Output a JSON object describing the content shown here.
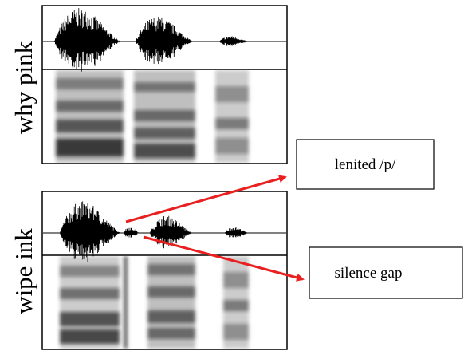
{
  "panels": [
    {
      "label": "why pink"
    },
    {
      "label": "wipe ink"
    }
  ],
  "callouts": [
    {
      "label": "lenited /p/"
    },
    {
      "label": "silence gap"
    }
  ]
}
